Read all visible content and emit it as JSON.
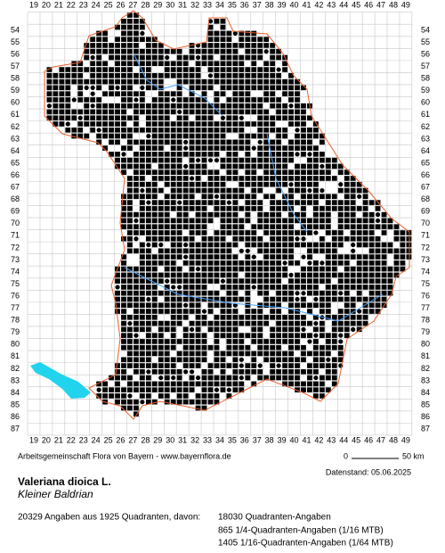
{
  "map": {
    "columns": [
      "19",
      "20",
      "21",
      "22",
      "23",
      "24",
      "25",
      "26",
      "27",
      "28",
      "29",
      "30",
      "31",
      "32",
      "33",
      "34",
      "35",
      "36",
      "37",
      "38",
      "39",
      "40",
      "41",
      "42",
      "43",
      "44",
      "45",
      "46",
      "47",
      "48",
      "49"
    ],
    "rows": [
      "54",
      "55",
      "56",
      "57",
      "58",
      "59",
      "60",
      "61",
      "62",
      "63",
      "64",
      "65",
      "66",
      "67",
      "68",
      "69",
      "70",
      "71",
      "72",
      "73",
      "74",
      "75",
      "76",
      "77",
      "78",
      "79",
      "80",
      "81",
      "82",
      "83",
      "84",
      "85",
      "86",
      "87"
    ],
    "credit": "Arbeitsgemeinschaft Flora von Bayern - www.bayernflora.de",
    "scale_start": "0",
    "scale_end": "50 km",
    "data_date": "Datenstand: 05.06.2025",
    "species": "Valeriana dioica L.",
    "common_name": "Kleiner Baldrian",
    "summary": "20329 Angaben aus 1925 Quadranten, davon:",
    "counts": [
      "18030 Quadranten-Angaben",
      "865 1/4-Quadranten-Angaben (1/16 MTB)",
      "1405 1/16-Quadranten-Angaben (1/64 MTB)"
    ]
  }
}
